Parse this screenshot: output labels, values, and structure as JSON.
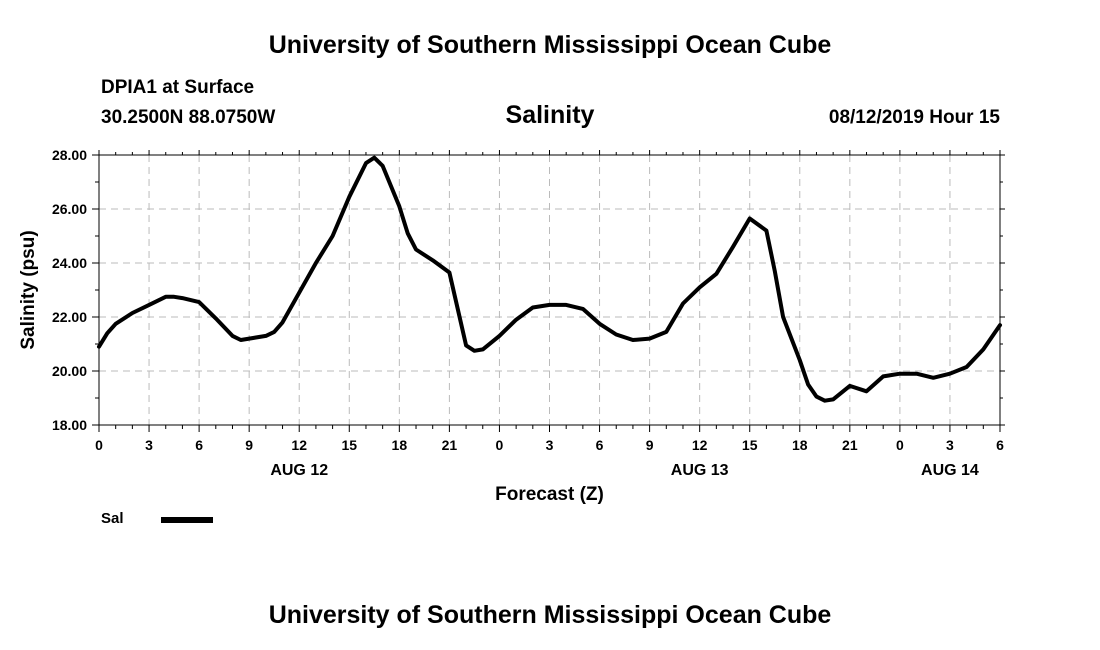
{
  "header": {
    "title": "University of Southern Mississippi Ocean Cube"
  },
  "info": {
    "station": "DPIA1 at Surface",
    "coords": "30.2500N 88.0750W",
    "chart_title": "Salinity",
    "timestamp": "08/12/2019 Hour 15"
  },
  "footer": {
    "title": "University of Southern Mississippi Ocean Cube"
  },
  "legend": {
    "label": "Sal",
    "color": "#000000"
  },
  "chart_data": {
    "type": "line",
    "title": "Salinity",
    "xlabel": "Forecast (Z)",
    "ylabel": "Salinity (psu)",
    "xlim": [
      0,
      54
    ],
    "ylim": [
      18,
      28
    ],
    "yticks": [
      "18.00",
      "20.00",
      "22.00",
      "24.00",
      "26.00",
      "28.00"
    ],
    "xticks": [
      "0",
      "3",
      "6",
      "9",
      "12",
      "15",
      "18",
      "21",
      "0",
      "3",
      "6",
      "9",
      "12",
      "15",
      "18",
      "21",
      "0",
      "3",
      "6"
    ],
    "day_labels": [
      {
        "label": "AUG 12",
        "x": 12
      },
      {
        "label": "AUG 13",
        "x": 36
      },
      {
        "label": "AUG 14",
        "x": 51
      }
    ],
    "grid": true,
    "series": [
      {
        "name": "Sal",
        "color": "#000000",
        "x": [
          0,
          0.5,
          1,
          2,
          3,
          4,
          4.5,
          5,
          6,
          7,
          8,
          8.5,
          9,
          10,
          10.5,
          11,
          12,
          13,
          14,
          15,
          16,
          16.5,
          17,
          18,
          18.5,
          19,
          20,
          21,
          22,
          22.5,
          23,
          24,
          25,
          26,
          27,
          28,
          29,
          30,
          31,
          32,
          33,
          34,
          35,
          36,
          37,
          38,
          39,
          40,
          40.5,
          41,
          42,
          42.5,
          43,
          43.5,
          44,
          45,
          46,
          47,
          48,
          49,
          50,
          51,
          52,
          53,
          54
        ],
        "y": [
          20.9,
          21.4,
          21.75,
          22.15,
          22.45,
          22.75,
          22.75,
          22.7,
          22.55,
          21.95,
          21.3,
          21.15,
          21.2,
          21.3,
          21.45,
          21.8,
          22.9,
          24.0,
          25.0,
          26.45,
          27.7,
          27.9,
          27.6,
          26.1,
          25.1,
          24.5,
          24.1,
          23.65,
          20.95,
          20.75,
          20.8,
          21.3,
          21.9,
          22.35,
          22.45,
          22.45,
          22.3,
          21.75,
          21.35,
          21.15,
          21.2,
          21.45,
          22.5,
          23.1,
          23.6,
          24.6,
          25.65,
          25.2,
          23.7,
          22.0,
          20.4,
          19.5,
          19.05,
          18.9,
          18.95,
          19.45,
          19.25,
          19.8,
          19.9,
          19.9,
          19.75,
          19.9,
          20.15,
          20.8,
          21.7
        ]
      }
    ]
  }
}
